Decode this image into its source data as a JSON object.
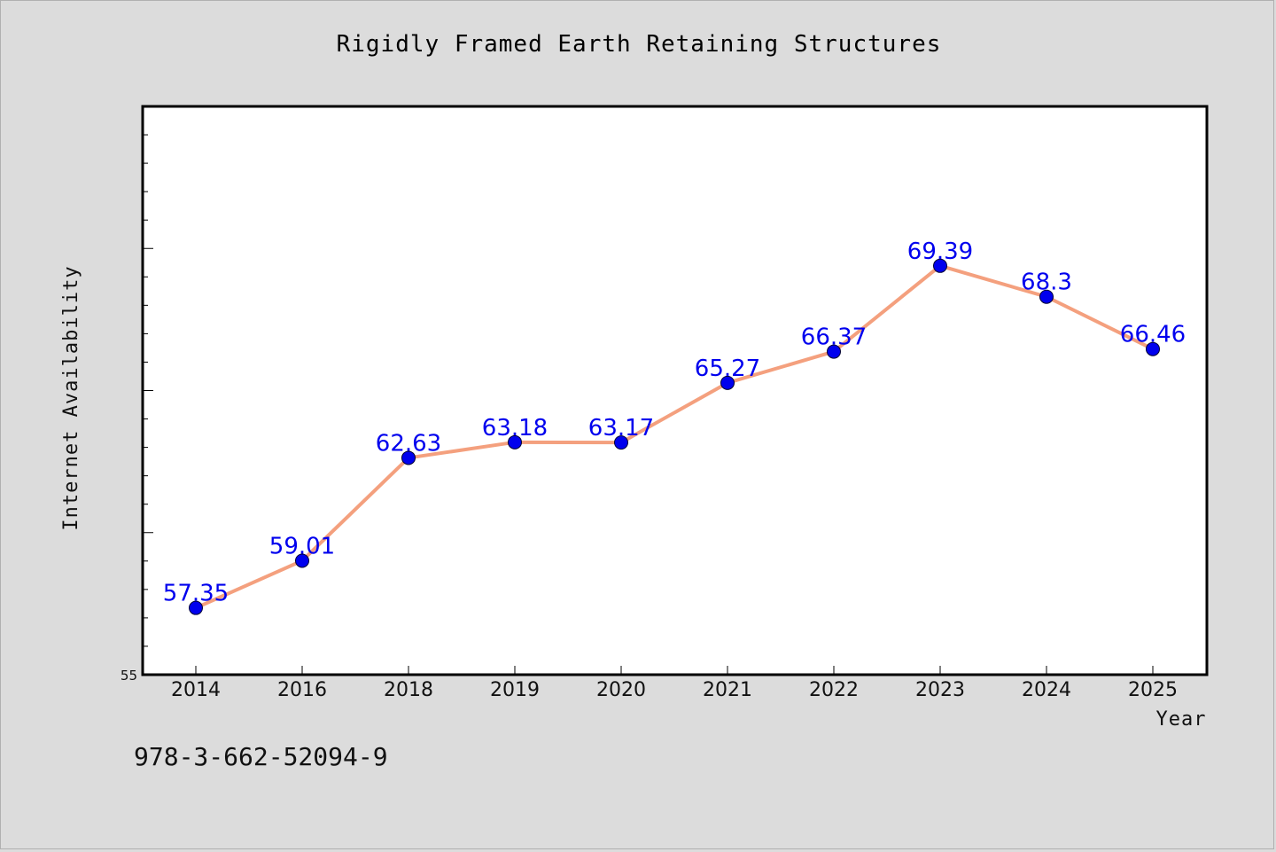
{
  "chart_data": {
    "type": "line",
    "title": "Rigidly Framed Earth Retaining Structures",
    "xlabel": "Year",
    "ylabel": "Internet Availability",
    "categories": [
      "2014",
      "2016",
      "2018",
      "2019",
      "2020",
      "2021",
      "2022",
      "2023",
      "2024",
      "2025"
    ],
    "series": [
      {
        "values": [
          57.35,
          59.01,
          62.63,
          63.18,
          63.17,
          65.27,
          66.37,
          69.39,
          68.3,
          66.46
        ],
        "data_labels": [
          "57.35",
          "59.01",
          "62.63",
          "63.18",
          "63.17",
          "65.27",
          "66.37",
          "69.39",
          "68.3",
          "66.46"
        ]
      }
    ],
    "ylim": [
      55,
      75
    ],
    "yticks": [
      "55"
    ],
    "grid": false,
    "legend": "none",
    "colors": {
      "line": "#f4a07e",
      "marker": "#0000ee",
      "marker_edge": "#000033",
      "data_label": "#0000ee",
      "plot_background": "#ffffff",
      "figure_background": "#dcdcdc"
    }
  },
  "footer": {
    "isbn": "978-3-662-52094-9"
  }
}
